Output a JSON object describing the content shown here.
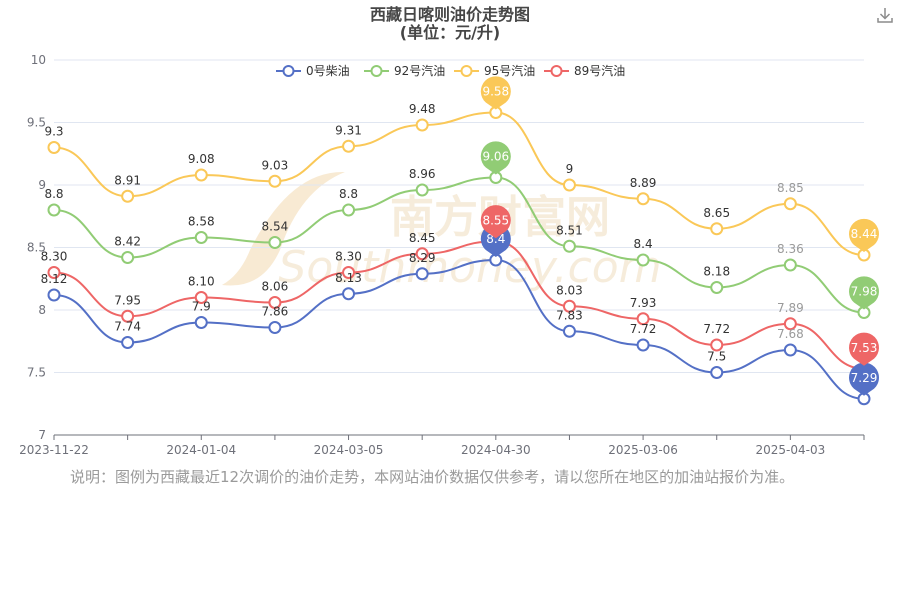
{
  "title": {
    "line1": "西藏日喀则油价走势图",
    "line2": "(单位：元/升)"
  },
  "note": "说明：图例为西藏最近12次调价的油价走势，本网站油价数据仅供参考，请以您所在地区的加油站报价为准。",
  "watermark": {
    "cn": "南方财富网",
    "en": "Southmoney.com"
  },
  "icons": {
    "download": "download-icon"
  },
  "chart_data": {
    "type": "line",
    "smooth": true,
    "x_tick_labels": [
      "2023-11-22",
      "2024-01-04",
      "2024-03-05",
      "2024-04-30",
      "2025-03-06",
      "2025-04-03"
    ],
    "ylim": [
      7,
      10
    ],
    "y_ticks": [
      7,
      7.5,
      8,
      8.5,
      9,
      9.5,
      10
    ],
    "grid": "horizontal",
    "legend_placement": "top-center",
    "points": 12,
    "series": [
      {
        "name": "0号柴油",
        "color": "#5470c6",
        "values": [
          8.12,
          7.74,
          7.9,
          7.86,
          8.13,
          8.29,
          8.4,
          7.83,
          7.72,
          7.5,
          7.68,
          7.29
        ],
        "labels": [
          "8.12",
          "7.74",
          "7.9",
          "7.86",
          "8.13",
          "8.29",
          "8.4",
          "7.83",
          "7.72",
          "7.5",
          "7.68",
          "7.29"
        ],
        "max_pin": "8.4",
        "min_pin": "7.29"
      },
      {
        "name": "92号汽油",
        "color": "#91cc75",
        "values": [
          8.8,
          8.42,
          8.58,
          8.54,
          8.8,
          8.96,
          9.06,
          8.51,
          8.4,
          8.18,
          8.36,
          7.98
        ],
        "labels": [
          "8.8",
          "8.42",
          "8.58",
          "8.54",
          "8.8",
          "8.96",
          "9.06",
          "8.51",
          "8.4",
          "8.18",
          "8.36",
          "7.98"
        ],
        "max_pin": "9.06",
        "min_pin": "7.98"
      },
      {
        "name": "95号汽油",
        "color": "#fac858",
        "values": [
          9.3,
          8.91,
          9.08,
          9.03,
          9.31,
          9.48,
          9.58,
          9.0,
          8.89,
          8.65,
          8.85,
          8.44
        ],
        "labels": [
          "9.3",
          "8.91",
          "9.08",
          "9.03",
          "9.31",
          "9.48",
          "9.58",
          "9",
          "8.89",
          "8.65",
          "8.85",
          "8.44"
        ],
        "max_pin": "9.58",
        "min_pin": "8.44"
      },
      {
        "name": "89号汽油",
        "color": "#ee6666",
        "values": [
          8.3,
          7.95,
          8.1,
          8.06,
          8.3,
          8.45,
          8.55,
          8.03,
          7.93,
          7.72,
          7.89,
          7.53
        ],
        "labels": [
          "8.30",
          "7.95",
          "8.10",
          "8.06",
          "8.30",
          "8.45",
          "8.55",
          "8.03",
          "7.93",
          "7.72",
          "7.89",
          "7.53"
        ],
        "max_pin": "8.55",
        "min_pin": "7.53"
      }
    ]
  }
}
